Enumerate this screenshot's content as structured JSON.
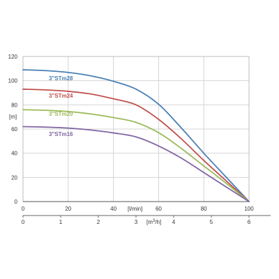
{
  "chart_data": {
    "type": "line",
    "grid": true,
    "y_axis": {
      "label": "[m]",
      "range": [
        0,
        120
      ],
      "ticks": [
        "0",
        "20",
        "40",
        "60",
        "80",
        "100",
        "120"
      ]
    },
    "x_axis_primary": {
      "label": "[l/min]",
      "range": [
        0,
        100
      ],
      "ticks": [
        "0",
        "20",
        "40",
        "60",
        "80",
        "100"
      ]
    },
    "x_axis_secondary": {
      "label_base": "[m",
      "label_sup": "3",
      "label_tail": "/h]",
      "range": [
        0,
        6
      ],
      "ticks": [
        "0",
        "1",
        "2",
        "3",
        "4",
        "5",
        "6"
      ]
    },
    "series": [
      {
        "name": "3\"STm28",
        "color": "#4a7fb5",
        "x": [
          0,
          10,
          20,
          30,
          40,
          50,
          60,
          70,
          80,
          90,
          100
        ],
        "y": [
          109,
          108.3,
          106.8,
          104,
          99.5,
          93,
          80.5,
          61,
          40,
          20,
          0
        ]
      },
      {
        "name": "3\"STm24",
        "color": "#c0504d",
        "x": [
          0,
          10,
          20,
          30,
          40,
          50,
          60,
          70,
          80,
          90,
          100
        ],
        "y": [
          93,
          92.4,
          91.2,
          89,
          85,
          80,
          68,
          52,
          34,
          17,
          0
        ]
      },
      {
        "name": "3\"STm20",
        "color": "#9bbb59",
        "x": [
          0,
          10,
          20,
          30,
          40,
          50,
          60,
          70,
          80,
          90,
          100
        ],
        "y": [
          76,
          75.5,
          74.5,
          72.5,
          69.5,
          65.5,
          57,
          44,
          29.5,
          15,
          0
        ]
      },
      {
        "name": "3\"STm16",
        "color": "#8064a2",
        "x": [
          0,
          10,
          20,
          30,
          40,
          50,
          60,
          70,
          80,
          90,
          100
        ],
        "y": [
          62,
          61.6,
          60.8,
          59.2,
          56.8,
          53.5,
          46,
          36,
          24,
          12,
          0
        ]
      }
    ]
  }
}
